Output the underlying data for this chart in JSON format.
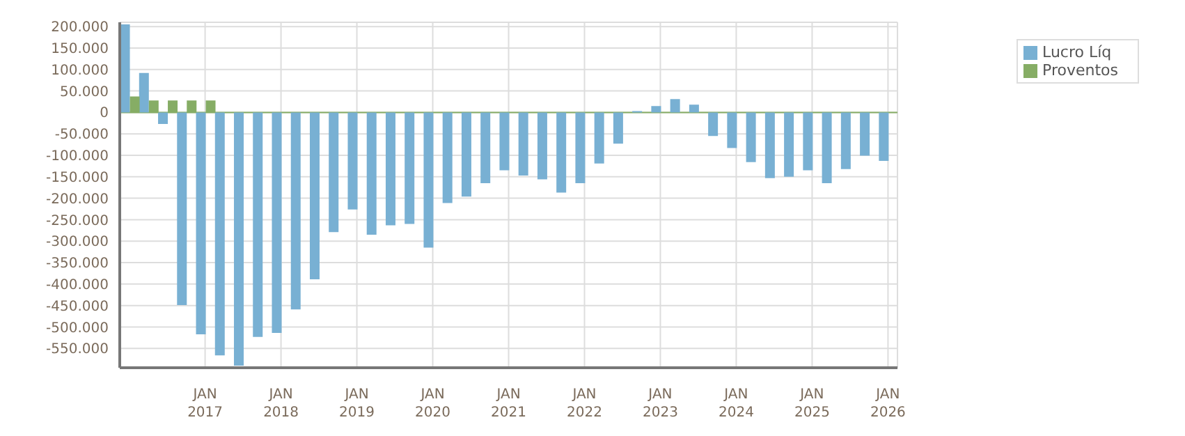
{
  "chart_data": {
    "type": "bar",
    "categories": [
      null,
      null,
      null,
      null,
      "JAN 2017",
      null,
      null,
      null,
      "JAN 2018",
      null,
      null,
      null,
      "JAN 2019",
      null,
      null,
      null,
      "JAN 2020",
      null,
      null,
      null,
      "JAN 2021",
      null,
      null,
      null,
      "JAN 2022",
      null,
      null,
      null,
      "JAN 2023",
      null,
      null,
      null,
      "JAN 2024",
      null,
      null,
      null,
      "JAN 2025",
      null,
      null,
      null,
      "JAN 2026"
    ],
    "series": [
      {
        "name": "Lucro Líq",
        "color": "#78b0d3",
        "values": [
          205000,
          92000,
          -27000,
          -449000,
          -517000,
          -566000,
          -590000,
          -523000,
          -514000,
          -459000,
          -389000,
          -279000,
          -226000,
          -285000,
          -263000,
          -260000,
          -315000,
          -211000,
          -196000,
          -165000,
          -135000,
          -147000,
          -156000,
          -187000,
          -165000,
          -119000,
          -73000,
          3000,
          15000,
          31000,
          18000,
          -55000,
          -83000,
          -116000,
          -153000,
          -150000,
          -135000,
          -165000,
          -132000,
          -101000,
          -113000
        ]
      },
      {
        "name": "Proventos",
        "color": "#86ad65",
        "values": [
          37000,
          28000,
          28000,
          28000,
          28000,
          null,
          null,
          null,
          null,
          null,
          null,
          null,
          null,
          null,
          null,
          null,
          null,
          null,
          null,
          null,
          null,
          null,
          null,
          null,
          null,
          null,
          null,
          null,
          null,
          null,
          null,
          null,
          null,
          null,
          null,
          null,
          null,
          null,
          null,
          null,
          null
        ]
      }
    ],
    "ylim": [
      -595000,
      210000
    ],
    "yticks": [
      {
        "value": -550000,
        "label": "-550.000"
      },
      {
        "value": -500000,
        "label": "-500.000"
      },
      {
        "value": -450000,
        "label": "-450.000"
      },
      {
        "value": -400000,
        "label": "-400.000"
      },
      {
        "value": -350000,
        "label": "-350.000"
      },
      {
        "value": -300000,
        "label": "-300.000"
      },
      {
        "value": -250000,
        "label": "-250.000"
      },
      {
        "value": -200000,
        "label": "-200.000"
      },
      {
        "value": -150000,
        "label": "-150.000"
      },
      {
        "value": -100000,
        "label": "-100.000"
      },
      {
        "value": -50000,
        "label": "-50.000"
      },
      {
        "value": 0,
        "label": "0"
      },
      {
        "value": 50000,
        "label": "50.000"
      },
      {
        "value": 100000,
        "label": "100.000"
      },
      {
        "value": 150000,
        "label": "150.000"
      },
      {
        "value": 200000,
        "label": "200.000"
      }
    ],
    "grid": true,
    "ref_lines": [
      {
        "axis": "y",
        "value": 0,
        "color": "#86ad65"
      }
    ],
    "legend": "top right"
  }
}
